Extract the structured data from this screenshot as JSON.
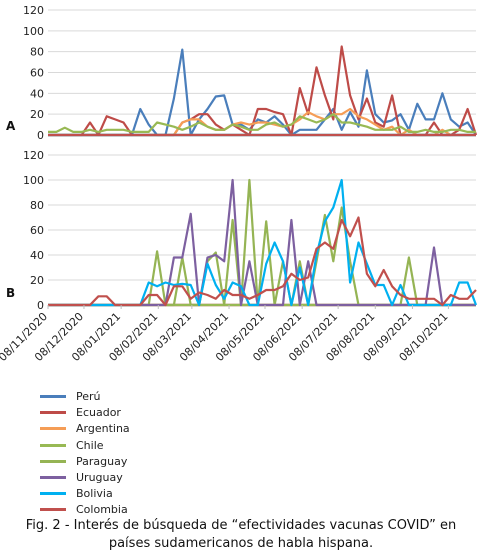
{
  "caption": {
    "line1": "Fig. 2 - Interés de búsqueda de “efectividades vacunas COVID” en",
    "line2": "países sudamericanos de habla hispana."
  },
  "chart_data": {
    "type": "line",
    "x": [
      "08/11/2020",
      "15/11/2020",
      "22/11/2020",
      "29/11/2020",
      "06/12/2020",
      "13/12/2020",
      "20/12/2020",
      "27/12/2020",
      "03/01/2021",
      "10/01/2021",
      "17/01/2021",
      "24/01/2021",
      "31/01/2021",
      "07/02/2021",
      "14/02/2021",
      "21/02/2021",
      "28/02/2021",
      "07/03/2021",
      "14/03/2021",
      "21/03/2021",
      "28/03/2021",
      "04/04/2021",
      "11/04/2021",
      "18/04/2021",
      "25/04/2021",
      "02/05/2021",
      "09/05/2021",
      "16/05/2021",
      "23/05/2021",
      "30/05/2021",
      "06/06/2021",
      "13/06/2021",
      "20/06/2021",
      "27/06/2021",
      "04/07/2021",
      "11/07/2021",
      "18/07/2021",
      "25/07/2021",
      "01/08/2021",
      "08/08/2021",
      "15/08/2021",
      "22/08/2021",
      "29/08/2021",
      "05/09/2021",
      "12/09/2021",
      "19/09/2021",
      "26/09/2021",
      "03/10/2021",
      "10/10/2021",
      "17/10/2021",
      "24/10/2021",
      "31/10/2021"
    ],
    "x_tick_labels": [
      "08/11/2020",
      "08/12/2020",
      "08/01/2021",
      "08/02/2021",
      "08/03/2021",
      "08/04/2021",
      "08/05/2021",
      "08/06/2021",
      "08/07/2021",
      "08/08/2021",
      "08/09/2021",
      "08/10/2021"
    ],
    "y_ticks": [
      0,
      20,
      40,
      60,
      80,
      100,
      120
    ],
    "ylim": [
      0,
      120
    ],
    "grid": true,
    "legend_position": "bottom-left",
    "panels": [
      {
        "label": "A",
        "series": [
          {
            "name": "Perú",
            "color": "#4a7ebb",
            "values": [
              0,
              0,
              0,
              0,
              0,
              0,
              0,
              0,
              0,
              0,
              0,
              25,
              10,
              0,
              0,
              35,
              82,
              0,
              15,
              25,
              37,
              38,
              10,
              10,
              5,
              15,
              12,
              18,
              10,
              0,
              5,
              5,
              5,
              15,
              25,
              5,
              22,
              8,
              62,
              20,
              12,
              14,
              20,
              5,
              30,
              15,
              15,
              40,
              15,
              8,
              12,
              0
            ]
          },
          {
            "name": "Ecuador",
            "color": "#be4b48",
            "values": [
              0,
              0,
              0,
              0,
              0,
              12,
              0,
              18,
              15,
              12,
              0,
              0,
              0,
              0,
              0,
              0,
              12,
              15,
              20,
              20,
              10,
              5,
              10,
              5,
              0,
              25,
              25,
              22,
              20,
              0,
              45,
              20,
              65,
              38,
              15,
              85,
              38,
              15,
              35,
              12,
              8,
              38,
              0,
              0,
              0,
              0,
              12,
              0,
              0,
              5,
              25,
              0
            ]
          },
          {
            "name": "Argentina",
            "color": "#f59d56",
            "values": [
              0,
              0,
              0,
              0,
              0,
              0,
              0,
              0,
              0,
              0,
              0,
              0,
              0,
              0,
              0,
              0,
              12,
              15,
              15,
              8,
              5,
              5,
              10,
              12,
              10,
              12,
              12,
              10,
              8,
              10,
              15,
              22,
              18,
              15,
              20,
              20,
              25,
              18,
              15,
              10,
              5,
              8,
              0,
              5,
              0,
              0,
              0,
              5,
              0,
              0,
              0,
              0
            ]
          },
          {
            "name": "Chile",
            "color": "#98b954",
            "values": [
              3,
              3,
              7,
              3,
              3,
              5,
              3,
              5,
              5,
              5,
              3,
              3,
              3,
              12,
              10,
              8,
              5,
              8,
              12,
              8,
              5,
              5,
              10,
              8,
              5,
              5,
              10,
              12,
              8,
              10,
              18,
              15,
              12,
              15,
              20,
              12,
              12,
              10,
              8,
              5,
              5,
              5,
              8,
              3,
              3,
              5,
              3,
              3,
              5,
              5,
              3,
              3
            ]
          },
          {
            "name": "Paraguay",
            "color": "#95b454",
            "values": [
              0,
              0,
              0,
              0,
              0,
              0,
              0,
              0,
              0,
              0,
              0,
              0,
              0,
              0,
              0,
              0,
              0,
              0,
              0,
              0,
              0,
              0,
              0,
              0,
              0,
              0,
              0,
              0,
              0,
              0,
              0,
              0,
              0,
              0,
              0,
              0,
              0,
              0,
              0,
              0,
              0,
              0,
              0,
              0,
              0,
              0,
              0,
              0,
              0,
              0,
              0,
              0
            ]
          },
          {
            "name": "Uruguay",
            "color": "#7d60a0",
            "values": [
              0,
              0,
              0,
              0,
              0,
              0,
              0,
              0,
              0,
              0,
              0,
              0,
              0,
              0,
              0,
              0,
              0,
              0,
              0,
              0,
              0,
              0,
              0,
              0,
              0,
              0,
              0,
              0,
              0,
              0,
              0,
              0,
              0,
              0,
              0,
              0,
              0,
              0,
              0,
              0,
              0,
              0,
              0,
              0,
              0,
              0,
              0,
              0,
              0,
              0,
              0,
              0
            ]
          },
          {
            "name": "Bolivia",
            "color": "#00b0f0",
            "values": [
              0,
              0,
              0,
              0,
              0,
              0,
              0,
              0,
              0,
              0,
              0,
              0,
              0,
              0,
              0,
              0,
              0,
              0,
              0,
              0,
              0,
              0,
              0,
              0,
              0,
              0,
              0,
              0,
              0,
              0,
              0,
              0,
              0,
              0,
              0,
              0,
              0,
              0,
              0,
              0,
              0,
              0,
              0,
              0,
              0,
              0,
              0,
              0,
              0,
              0,
              0,
              0
            ]
          },
          {
            "name": "Colombia",
            "color": "#c0504d",
            "values": [
              0,
              0,
              0,
              0,
              0,
              0,
              0,
              0,
              0,
              0,
              0,
              0,
              0,
              0,
              0,
              0,
              0,
              0,
              0,
              0,
              0,
              0,
              0,
              0,
              0,
              0,
              0,
              0,
              0,
              0,
              0,
              0,
              0,
              0,
              0,
              0,
              0,
              0,
              0,
              0,
              0,
              0,
              0,
              0,
              0,
              0,
              0,
              0,
              0,
              0,
              0,
              0
            ]
          }
        ]
      },
      {
        "label": "B",
        "series": [
          {
            "name": "Perú",
            "color": "#4a7ebb",
            "values": [
              0,
              0,
              0,
              0,
              0,
              0,
              0,
              0,
              0,
              0,
              0,
              0,
              0,
              0,
              0,
              0,
              0,
              0,
              0,
              0,
              0,
              0,
              0,
              0,
              0,
              0,
              0,
              0,
              0,
              0,
              0,
              0,
              0,
              0,
              0,
              0,
              0,
              0,
              0,
              0,
              0,
              0,
              0,
              0,
              0,
              0,
              0,
              0,
              0,
              0,
              0,
              0
            ]
          },
          {
            "name": "Ecuador",
            "color": "#be4b48",
            "values": [
              0,
              0,
              0,
              0,
              0,
              0,
              0,
              0,
              0,
              0,
              0,
              0,
              0,
              0,
              0,
              0,
              0,
              0,
              0,
              0,
              0,
              0,
              0,
              0,
              0,
              0,
              0,
              0,
              0,
              0,
              0,
              0,
              0,
              0,
              0,
              0,
              0,
              0,
              0,
              0,
              0,
              0,
              0,
              0,
              0,
              0,
              0,
              0,
              0,
              0,
              0,
              0
            ]
          },
          {
            "name": "Argentina",
            "color": "#f59d56",
            "values": [
              0,
              0,
              0,
              0,
              0,
              0,
              0,
              0,
              0,
              0,
              0,
              0,
              0,
              0,
              0,
              0,
              0,
              0,
              0,
              0,
              0,
              0,
              0,
              0,
              0,
              0,
              0,
              0,
              0,
              0,
              0,
              0,
              0,
              0,
              0,
              0,
              0,
              0,
              0,
              0,
              0,
              0,
              0,
              0,
              0,
              0,
              0,
              0,
              0,
              0,
              0,
              0
            ]
          },
          {
            "name": "Chile",
            "color": "#98b954",
            "values": [
              0,
              0,
              0,
              0,
              0,
              0,
              0,
              0,
              0,
              0,
              0,
              0,
              0,
              0,
              0,
              0,
              0,
              0,
              0,
              0,
              0,
              0,
              0,
              0,
              0,
              0,
              0,
              0,
              0,
              0,
              0,
              0,
              0,
              0,
              0,
              0,
              0,
              0,
              0,
              0,
              0,
              0,
              0,
              0,
              0,
              0,
              0,
              0,
              0,
              0,
              0,
              0
            ]
          },
          {
            "name": "Paraguay",
            "color": "#95b454",
            "values": [
              0,
              0,
              0,
              0,
              0,
              0,
              0,
              0,
              0,
              0,
              0,
              0,
              0,
              43,
              0,
              0,
              38,
              0,
              0,
              35,
              42,
              0,
              68,
              0,
              100,
              0,
              67,
              0,
              35,
              0,
              35,
              0,
              35,
              72,
              35,
              78,
              35,
              0,
              0,
              0,
              0,
              0,
              0,
              38,
              0,
              0,
              0,
              0,
              0,
              0,
              0,
              0
            ]
          },
          {
            "name": "Uruguay",
            "color": "#7d60a0",
            "values": [
              0,
              0,
              0,
              0,
              0,
              0,
              0,
              0,
              0,
              0,
              0,
              0,
              0,
              0,
              0,
              38,
              38,
              73,
              0,
              38,
              40,
              35,
              100,
              0,
              35,
              0,
              0,
              0,
              0,
              68,
              0,
              35,
              0,
              0,
              0,
              0,
              0,
              0,
              0,
              0,
              0,
              0,
              0,
              0,
              0,
              0,
              46,
              0,
              0,
              0,
              0,
              0
            ]
          },
          {
            "name": "Bolivia",
            "color": "#00b0f0",
            "values": [
              0,
              0,
              0,
              0,
              0,
              0,
              0,
              0,
              0,
              0,
              0,
              0,
              18,
              15,
              18,
              16,
              17,
              16,
              0,
              33,
              16,
              5,
              18,
              15,
              0,
              0,
              33,
              50,
              35,
              0,
              30,
              0,
              40,
              67,
              78,
              100,
              18,
              50,
              33,
              16,
              16,
              0,
              16,
              0,
              0,
              0,
              0,
              0,
              0,
              18,
              18,
              0
            ]
          },
          {
            "name": "Colombia",
            "color": "#c0504d",
            "values": [
              0,
              0,
              0,
              0,
              0,
              0,
              7,
              7,
              0,
              0,
              0,
              0,
              8,
              8,
              0,
              15,
              15,
              5,
              10,
              8,
              5,
              12,
              8,
              8,
              5,
              8,
              12,
              12,
              15,
              25,
              20,
              22,
              45,
              50,
              45,
              68,
              55,
              70,
              25,
              15,
              28,
              15,
              8,
              5,
              5,
              5,
              5,
              0,
              8,
              5,
              5,
              12
            ]
          }
        ]
      }
    ]
  }
}
